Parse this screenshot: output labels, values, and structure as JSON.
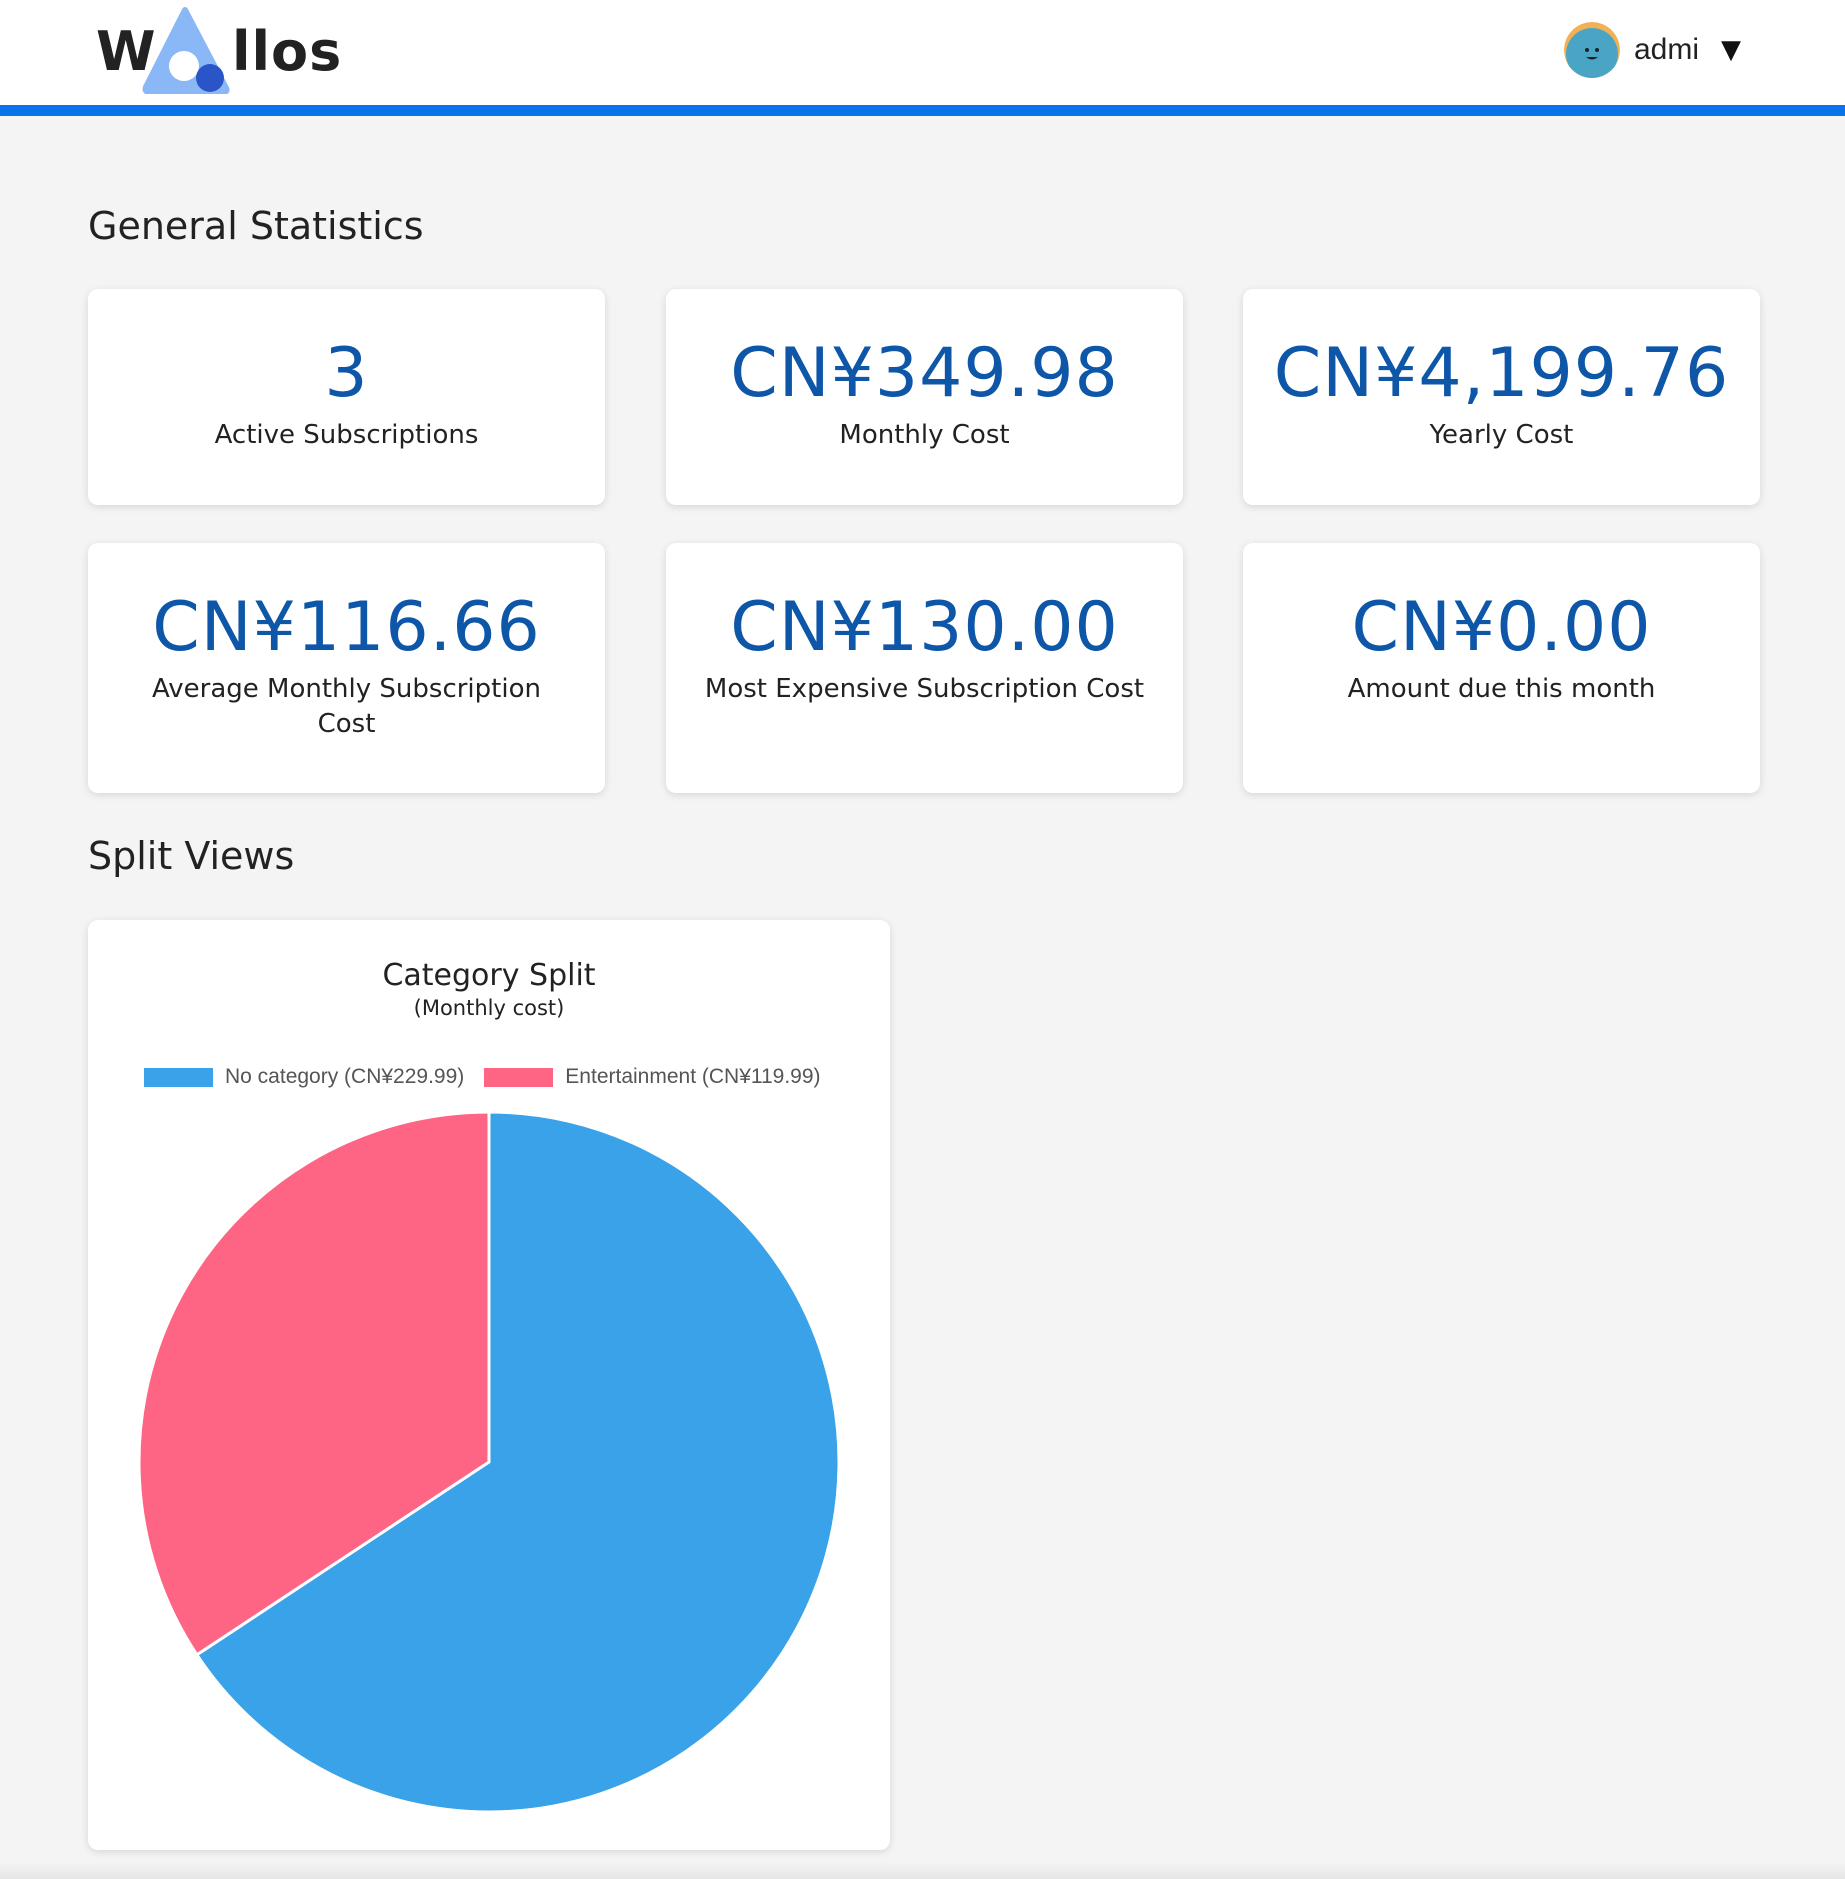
{
  "app": {
    "logo_text_left": "W",
    "logo_text_right": "llos",
    "accent_color": "#0a73eb"
  },
  "user": {
    "name": "admi",
    "caret": "▼",
    "avatar_icon": "smiley-face-avatar"
  },
  "general": {
    "title": "General Statistics",
    "stats": [
      {
        "value": "3",
        "label": "Active Subscriptions"
      },
      {
        "value": "CN¥349.98",
        "label": "Monthly Cost"
      },
      {
        "value": "CN¥4,199.76",
        "label": "Yearly Cost"
      },
      {
        "value": "CN¥116.66",
        "label": "Average Monthly Subscription Cost"
      },
      {
        "value": "CN¥130.00",
        "label": "Most Expensive Subscription Cost"
      },
      {
        "value": "CN¥0.00",
        "label": "Amount due this month"
      }
    ]
  },
  "split": {
    "title": "Split Views"
  },
  "chart_data": {
    "type": "pie",
    "title": "Category Split",
    "subtitle": "(Monthly cost)",
    "legend_position": "top",
    "categories": [
      "No category (CN¥229.99)",
      "Entertainment (CN¥119.99)"
    ],
    "values": [
      229.99,
      119.99
    ],
    "colors": [
      "#39a2e8",
      "#fe6484"
    ]
  }
}
